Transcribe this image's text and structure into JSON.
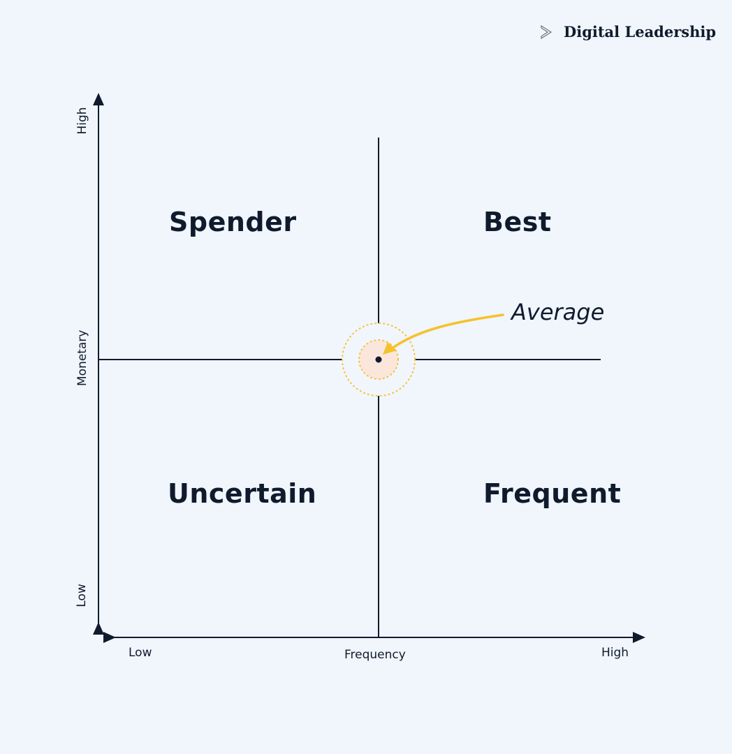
{
  "brand": {
    "name": "Digital Leadership",
    "icon": "chevron-right-outline-icon"
  },
  "axes": {
    "y_label": "Monetary",
    "y_high": "High",
    "y_low": "Low",
    "x_label": "Frequency",
    "x_low": "Low",
    "x_high": "High"
  },
  "quadrants": {
    "top_left": "Spender",
    "top_right": "Best",
    "bottom_left": "Uncertain",
    "bottom_right": "Frequent"
  },
  "annotation": {
    "label": "Average",
    "arrow_color": "#f5c22b",
    "highlight_color": "#fbe6dc"
  }
}
